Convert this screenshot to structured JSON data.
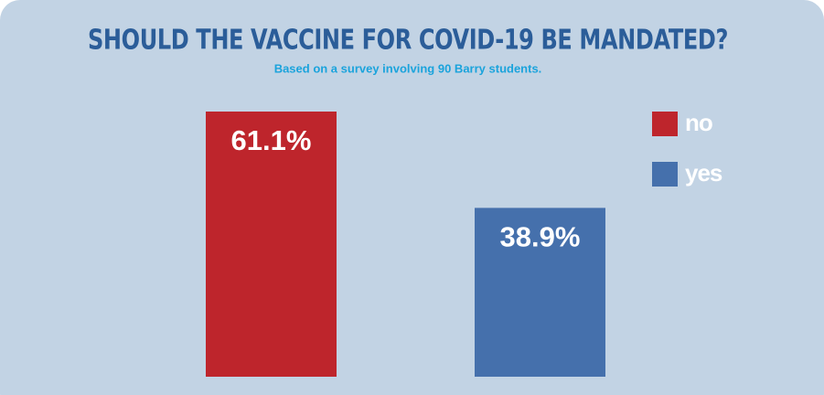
{
  "chart_data": {
    "type": "bar",
    "title": "SHOULD THE VACCINE FOR COVID-19 BE MANDATED?",
    "subtitle": "Based on a survey involving 90 Barry students.",
    "categories": [
      null
    ],
    "series": [
      {
        "name": "no",
        "color": "#be252c",
        "values": [
          61.1
        ],
        "value_labels": [
          "61.1%"
        ]
      },
      {
        "name": "yes",
        "color": "#4570ac",
        "values": [
          38.9
        ],
        "value_labels": [
          "38.9%"
        ]
      }
    ]
  }
}
